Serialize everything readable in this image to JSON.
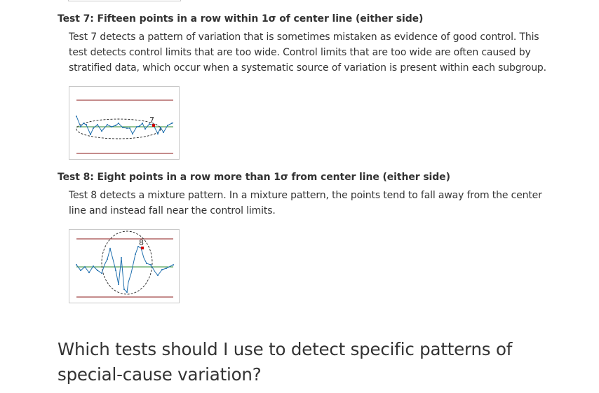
{
  "sections": [
    {
      "heading": "Test 7: Fifteen points in a row within 1σ of center line (either side)",
      "body": "Test 7 detects a pattern of variation that is sometimes mistaken as evidence of good control. This test detects control limits that are too wide. Control limits that are too wide are often caused by stratified data, which occur when a systematic source of variation is present within each subgroup.",
      "figure_label": "7"
    },
    {
      "heading": "Test 8: Eight points in a row more than 1σ from center line (either side)",
      "body": "Test 8 detects a mixture pattern. In a mixture pattern, the points tend to fall away from the center line and instead fall near the control limits.",
      "figure_label": "8"
    }
  ],
  "question": "Which tests should I use to detect specific patterns of special-cause variation?",
  "colors": {
    "limit_line": "#8b1a1a",
    "center_line": "#2e8b2e",
    "data_line": "#1f6fae",
    "flag_point": "#cc0000"
  }
}
